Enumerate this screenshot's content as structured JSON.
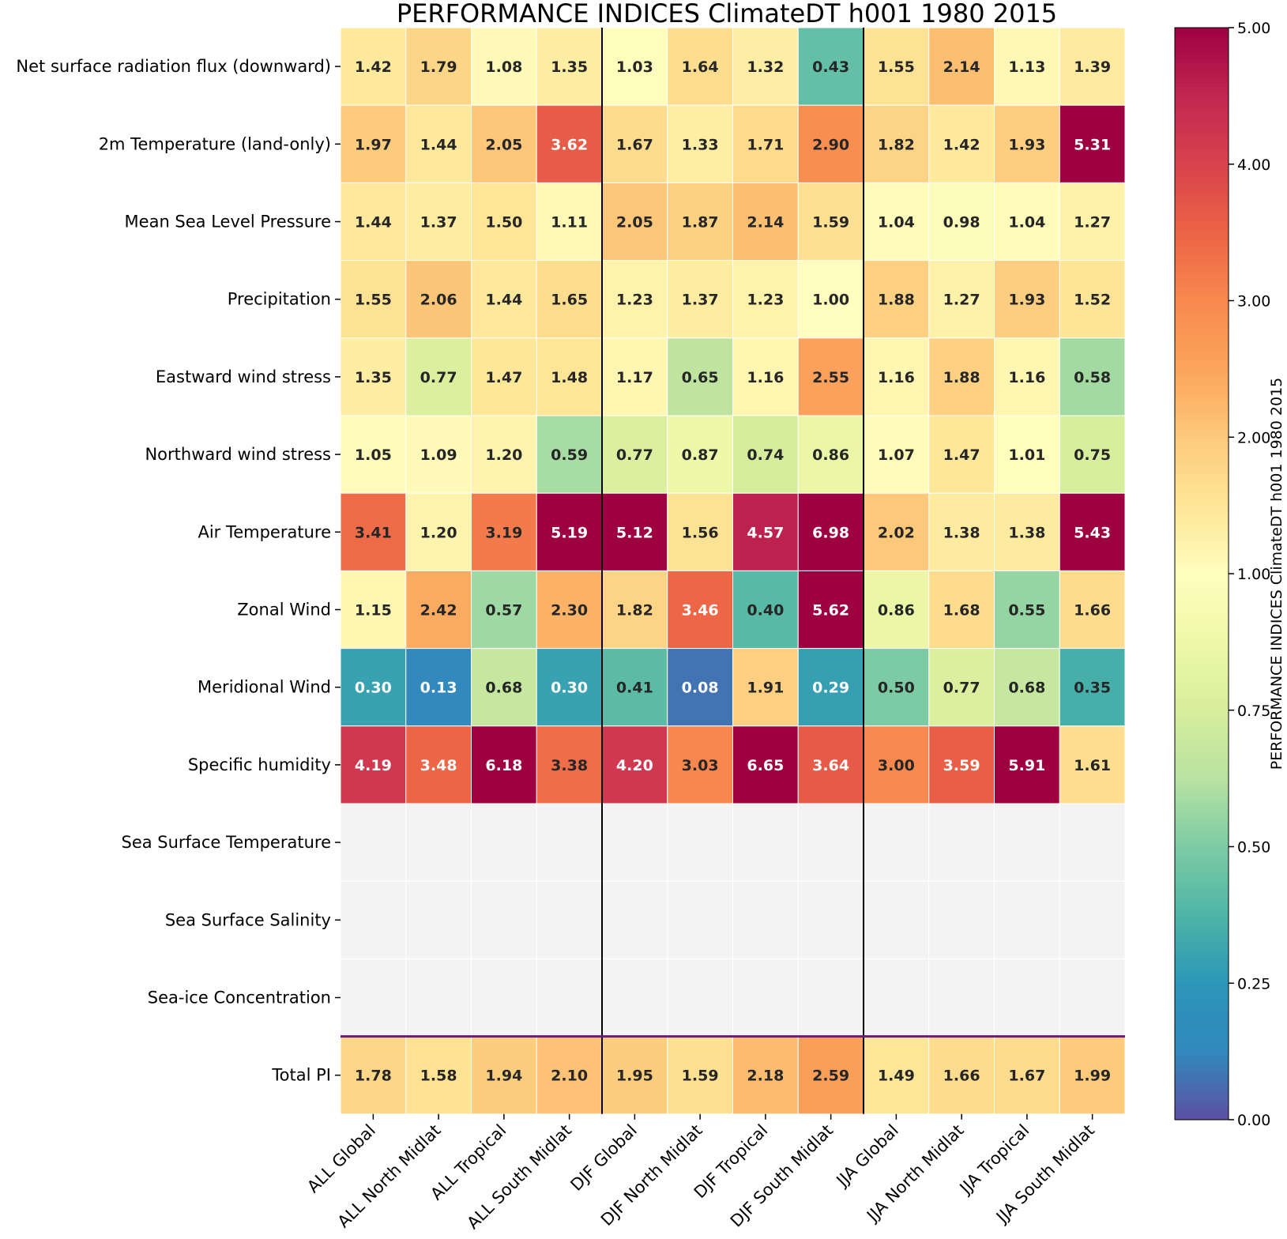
{
  "chart_data": {
    "type": "heatmap",
    "title": "PERFORMANCE INDICES ClimateDT h001 1980 2015",
    "colorbar_label": "PERFORMANCE INDICES ClimateDT h001 1980 2015",
    "colorbar_ticks": [
      {
        "value": 0.0,
        "label": "0.00"
      },
      {
        "value": 0.25,
        "label": "0.25"
      },
      {
        "value": 0.5,
        "label": "0.50"
      },
      {
        "value": 0.75,
        "label": "0.75"
      },
      {
        "value": 1.0,
        "label": "1.00"
      },
      {
        "value": 2.0,
        "label": "2.00"
      },
      {
        "value": 3.0,
        "label": "3.00"
      },
      {
        "value": 4.0,
        "label": "4.00"
      },
      {
        "value": 5.0,
        "label": "5.00"
      }
    ],
    "columns": [
      "ALL Global",
      "ALL North Midlat",
      "ALL Tropical",
      "ALL South Midlat",
      "DJF Global",
      "DJF North Midlat",
      "DJF Tropical",
      "DJF South Midlat",
      "JJA Global",
      "JJA North Midlat",
      "JJA Tropical",
      "JJA South Midlat"
    ],
    "rows": [
      {
        "label": "Net surface radiation flux (downward)",
        "values": [
          1.42,
          1.79,
          1.08,
          1.35,
          1.03,
          1.64,
          1.32,
          0.43,
          1.55,
          2.14,
          1.13,
          1.39
        ]
      },
      {
        "label": "2m Temperature (land-only)",
        "values": [
          1.97,
          1.44,
          2.05,
          3.62,
          1.67,
          1.33,
          1.71,
          2.9,
          1.82,
          1.42,
          1.93,
          5.31
        ]
      },
      {
        "label": "Mean Sea Level Pressure",
        "values": [
          1.44,
          1.37,
          1.5,
          1.11,
          2.05,
          1.87,
          2.14,
          1.59,
          1.04,
          0.98,
          1.04,
          1.27
        ]
      },
      {
        "label": "Precipitation",
        "values": [
          1.55,
          2.06,
          1.44,
          1.65,
          1.23,
          1.37,
          1.23,
          1.0,
          1.88,
          1.27,
          1.93,
          1.52
        ]
      },
      {
        "label": "Eastward wind stress",
        "values": [
          1.35,
          0.77,
          1.47,
          1.48,
          1.17,
          0.65,
          1.16,
          2.55,
          1.16,
          1.88,
          1.16,
          0.58
        ]
      },
      {
        "label": "Northward wind stress",
        "values": [
          1.05,
          1.09,
          1.2,
          0.59,
          0.77,
          0.87,
          0.74,
          0.86,
          1.07,
          1.47,
          1.01,
          0.75
        ]
      },
      {
        "label": "Air Temperature",
        "values": [
          3.41,
          1.2,
          3.19,
          5.19,
          5.12,
          1.56,
          4.57,
          6.98,
          2.02,
          1.38,
          1.38,
          5.43
        ]
      },
      {
        "label": "Zonal Wind",
        "values": [
          1.15,
          2.42,
          0.57,
          2.3,
          1.82,
          3.46,
          0.4,
          5.62,
          0.86,
          1.68,
          0.55,
          1.66
        ]
      },
      {
        "label": "Meridional Wind",
        "values": [
          0.3,
          0.13,
          0.68,
          0.3,
          0.41,
          0.08,
          1.91,
          0.29,
          0.5,
          0.77,
          0.68,
          0.35
        ]
      },
      {
        "label": "Specific humidity",
        "values": [
          4.19,
          3.48,
          6.18,
          3.38,
          4.2,
          3.03,
          6.65,
          3.64,
          3.0,
          3.59,
          5.91,
          1.61
        ]
      },
      {
        "label": "Sea Surface Temperature",
        "values": [
          null,
          null,
          null,
          null,
          null,
          null,
          null,
          null,
          null,
          null,
          null,
          null
        ]
      },
      {
        "label": "Sea Surface Salinity",
        "values": [
          null,
          null,
          null,
          null,
          null,
          null,
          null,
          null,
          null,
          null,
          null,
          null
        ]
      },
      {
        "label": "Sea-ice Concentration",
        "values": [
          null,
          null,
          null,
          null,
          null,
          null,
          null,
          null,
          null,
          null,
          null,
          null
        ]
      },
      {
        "label": "Total PI",
        "values": [
          1.78,
          1.58,
          1.94,
          2.1,
          1.95,
          1.59,
          2.18,
          2.59,
          1.49,
          1.66,
          1.67,
          1.99
        ]
      }
    ],
    "season_separators_after_columns": [
      4,
      8
    ],
    "total_separator_before_row": 13,
    "colormap": {
      "name": "Spectral_r (two-segment)",
      "anchors": [
        {
          "value": 0.0,
          "color": "#5e4fa2"
        },
        {
          "value": 0.125,
          "color": "#3288bd"
        },
        {
          "value": 0.25,
          "color": "#2b96b8"
        },
        {
          "value": 0.375,
          "color": "#4eb5a6"
        },
        {
          "value": 0.5,
          "color": "#7dcba4"
        },
        {
          "value": 0.625,
          "color": "#b8e2a1"
        },
        {
          "value": 0.75,
          "color": "#d7ee9c"
        },
        {
          "value": 0.875,
          "color": "#eef8a8"
        },
        {
          "value": 1.0,
          "color": "#fffebe"
        },
        {
          "value": 1.5,
          "color": "#fee597"
        },
        {
          "value": 2.0,
          "color": "#fdca7b"
        },
        {
          "value": 2.5,
          "color": "#fba45c"
        },
        {
          "value": 3.0,
          "color": "#f8894e"
        },
        {
          "value": 3.5,
          "color": "#ec6446"
        },
        {
          "value": 4.0,
          "color": "#d8434d"
        },
        {
          "value": 4.5,
          "color": "#c22751"
        },
        {
          "value": 5.0,
          "color": "#9e0142"
        }
      ],
      "missing_color": "#f3f3f3"
    }
  }
}
